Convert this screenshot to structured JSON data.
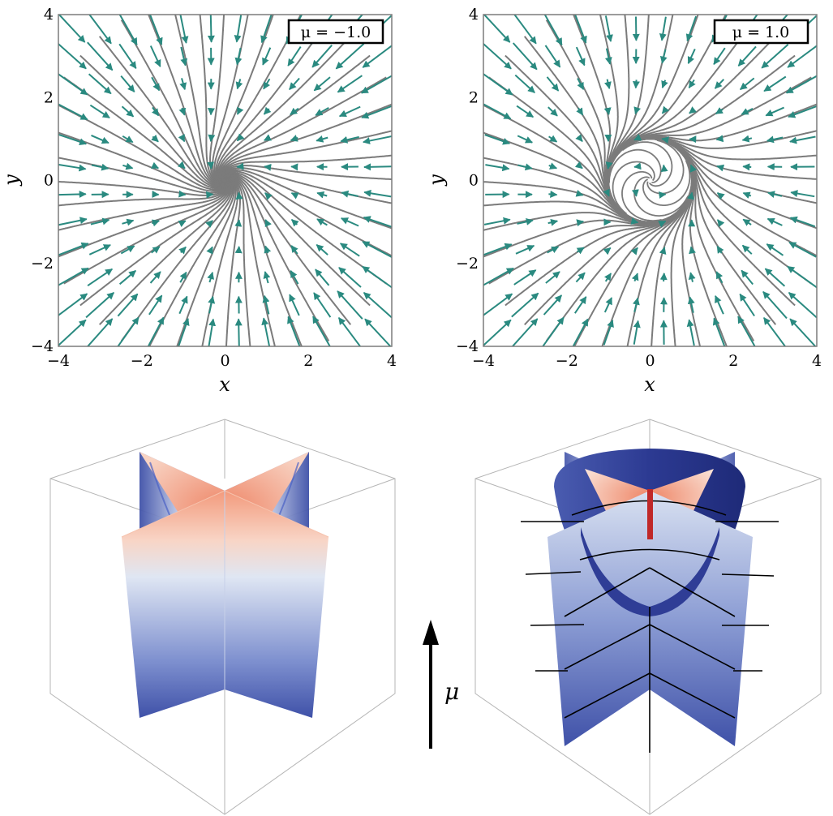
{
  "panels": [
    {
      "id": "left",
      "legend": "μ = −1.0",
      "mu": -1.0,
      "xlabel": "x",
      "ylabel": "y",
      "xticks": [
        "−4",
        "−2",
        "0",
        "2",
        "4"
      ],
      "yticks": [
        "4",
        "2",
        "0",
        "−2",
        "−4"
      ]
    },
    {
      "id": "right",
      "legend": "μ = 1.0",
      "mu": 1.0,
      "xlabel": "x",
      "ylabel": "y",
      "xticks": [
        "−4",
        "−2",
        "0",
        "2",
        "4"
      ],
      "yticks": [
        "4",
        "2",
        "0",
        "−2",
        "−4"
      ]
    }
  ],
  "axis_range": [
    -4,
    4
  ],
  "colors": {
    "streamline": "#7b7b7b",
    "arrow": "#2a8a80",
    "surface_low": "#3f51a8",
    "surface_mid": "#dfe6f3",
    "surface_high": "#ec8a6c",
    "bowl": "#2f3d96",
    "center_line": "#c02828",
    "frame": "#b5b5b5"
  },
  "mu_axis_label": "μ"
}
